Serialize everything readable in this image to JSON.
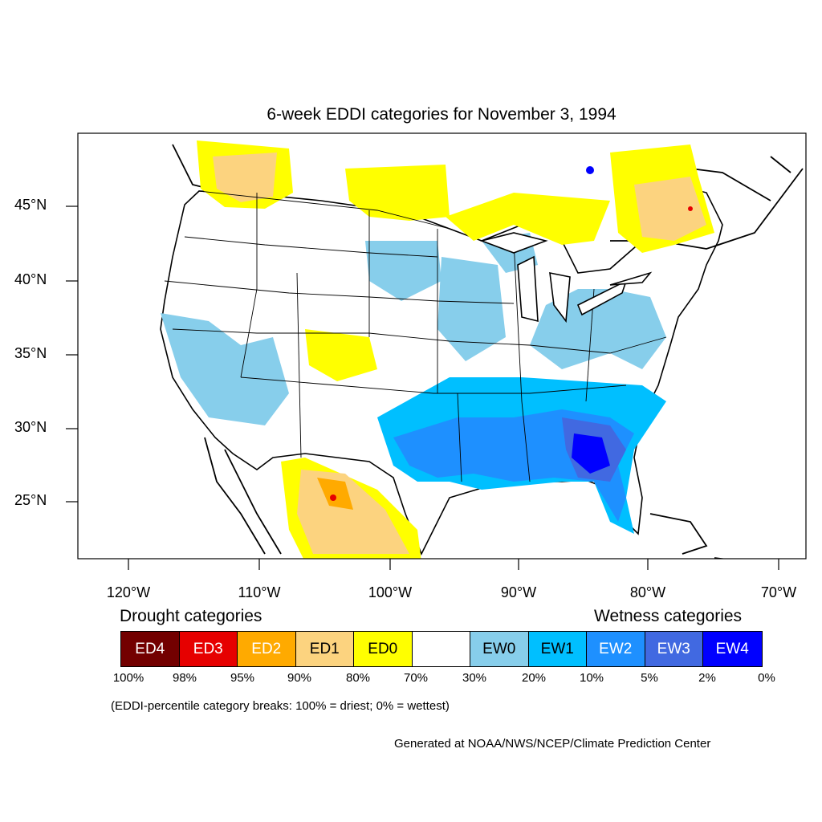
{
  "title": "6-week EDDI categories for November 3, 1994",
  "map": {
    "lat_labels": [
      "45°N",
      "40°N",
      "35°N",
      "30°N",
      "25°N"
    ],
    "lon_labels": [
      "120°W",
      "110°W",
      "100°W",
      "90°W",
      "80°W",
      "70°W"
    ]
  },
  "legend": {
    "drought_heading": "Drought categories",
    "wetness_heading": "Wetness categories",
    "categories": [
      {
        "label": "ED4",
        "color": "#730000",
        "text_color": "#ffffff"
      },
      {
        "label": "ED3",
        "color": "#e60000",
        "text_color": "#ffffff"
      },
      {
        "label": "ED2",
        "color": "#ffaa00",
        "text_color": "#ffffff"
      },
      {
        "label": "ED1",
        "color": "#fcd37f",
        "text_color": "#000000"
      },
      {
        "label": "ED0",
        "color": "#ffff00",
        "text_color": "#000000"
      },
      {
        "label": "",
        "color": "#ffffff",
        "text_color": "#000000"
      },
      {
        "label": "EW0",
        "color": "#87ceeb",
        "text_color": "#000000"
      },
      {
        "label": "EW1",
        "color": "#00bfff",
        "text_color": "#000000"
      },
      {
        "label": "EW2",
        "color": "#1e90ff",
        "text_color": "#ffffff"
      },
      {
        "label": "EW3",
        "color": "#4169e1",
        "text_color": "#ffffff"
      },
      {
        "label": "EW4",
        "color": "#0000ff",
        "text_color": "#ffffff"
      }
    ],
    "breaks": [
      "100%",
      "98%",
      "95%",
      "90%",
      "80%",
      "70%",
      "30%",
      "20%",
      "10%",
      "5%",
      "2%",
      "0%"
    ]
  },
  "note": "(EDDI-percentile category breaks: 100% = driest; 0% = wettest)",
  "credit": "Generated at NOAA/NWS/NCEP/Climate Prediction Center"
}
